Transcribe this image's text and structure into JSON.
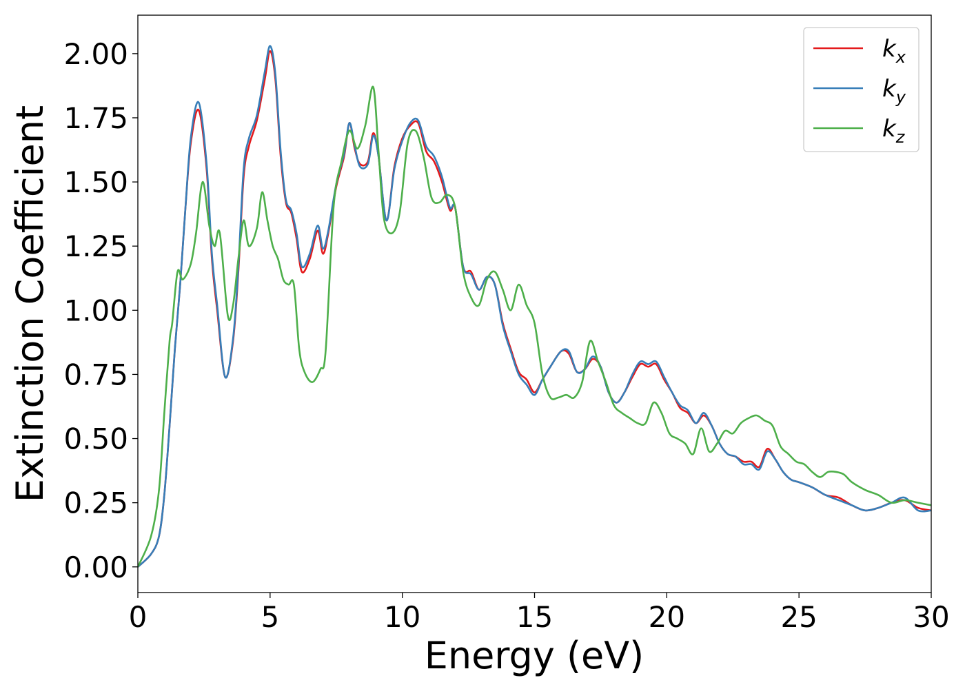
{
  "chart_data": {
    "type": "line",
    "title": "",
    "xlabel": "Energy (eV)",
    "ylabel": "Extinction Coefficient",
    "xlim": [
      0,
      30
    ],
    "ylim": [
      -0.1,
      2.15
    ],
    "xticks": [
      0,
      5,
      10,
      15,
      20,
      25,
      30
    ],
    "xtick_labels": [
      "0",
      "5",
      "10",
      "15",
      "20",
      "25",
      "30"
    ],
    "yticks": [
      0,
      0.25,
      0.5,
      0.75,
      1.0,
      1.25,
      1.5,
      1.75,
      2.0
    ],
    "ytick_labels": [
      "0.00",
      "0.25",
      "0.50",
      "0.75",
      "1.00",
      "1.25",
      "1.50",
      "1.75",
      "2.00"
    ],
    "grid": false,
    "legend_position": "top-right",
    "series": [
      {
        "name": "k_x",
        "label_main": "k",
        "label_sub": "x",
        "color": "#e41a1c",
        "x": [
          0,
          0.5,
          0.8,
          1.0,
          1.2,
          1.4,
          1.6,
          1.8,
          2.0,
          2.3,
          2.6,
          2.8,
          3.0,
          3.3,
          3.6,
          3.8,
          4.0,
          4.2,
          4.5,
          4.8,
          5.0,
          5.2,
          5.4,
          5.6,
          5.8,
          6.0,
          6.2,
          6.5,
          6.8,
          7.0,
          7.2,
          7.5,
          7.8,
          8.0,
          8.2,
          8.4,
          8.7,
          8.9,
          9.1,
          9.4,
          9.7,
          10.0,
          10.3,
          10.6,
          10.9,
          11.2,
          11.5,
          11.8,
          12.0,
          12.3,
          12.6,
          12.9,
          13.2,
          13.5,
          13.8,
          14.1,
          14.4,
          14.7,
          15.0,
          15.3,
          15.6,
          16.0,
          16.3,
          16.6,
          16.9,
          17.2,
          17.5,
          17.8,
          18.1,
          18.4,
          18.7,
          19.0,
          19.3,
          19.6,
          19.9,
          20.2,
          20.5,
          20.8,
          21.1,
          21.4,
          21.7,
          22.0,
          22.3,
          22.6,
          22.9,
          23.2,
          23.5,
          23.8,
          24.1,
          24.4,
          24.7,
          25.0,
          25.5,
          26.0,
          26.5,
          27.0,
          27.5,
          28.0,
          28.5,
          29.0,
          29.5,
          30.0
        ],
        "y": [
          0.0,
          0.05,
          0.12,
          0.28,
          0.55,
          0.85,
          1.1,
          1.4,
          1.65,
          1.78,
          1.55,
          1.2,
          1.0,
          0.74,
          0.88,
          1.15,
          1.52,
          1.64,
          1.74,
          1.9,
          2.01,
          1.9,
          1.6,
          1.42,
          1.38,
          1.28,
          1.15,
          1.2,
          1.31,
          1.22,
          1.3,
          1.48,
          1.6,
          1.73,
          1.63,
          1.57,
          1.58,
          1.69,
          1.6,
          1.35,
          1.56,
          1.67,
          1.72,
          1.73,
          1.62,
          1.58,
          1.5,
          1.39,
          1.4,
          1.17,
          1.15,
          1.08,
          1.13,
          1.1,
          0.95,
          0.85,
          0.76,
          0.73,
          0.68,
          0.73,
          0.78,
          0.84,
          0.83,
          0.76,
          0.77,
          0.81,
          0.78,
          0.68,
          0.64,
          0.68,
          0.74,
          0.79,
          0.78,
          0.79,
          0.73,
          0.68,
          0.62,
          0.6,
          0.56,
          0.59,
          0.55,
          0.48,
          0.44,
          0.43,
          0.41,
          0.41,
          0.39,
          0.46,
          0.42,
          0.37,
          0.34,
          0.33,
          0.31,
          0.28,
          0.27,
          0.24,
          0.22,
          0.23,
          0.25,
          0.26,
          0.23,
          0.22
        ]
      },
      {
        "name": "k_y",
        "label_main": "k",
        "label_sub": "y",
        "color": "#377eb8",
        "x": [
          0,
          0.5,
          0.8,
          1.0,
          1.2,
          1.4,
          1.6,
          1.8,
          2.0,
          2.3,
          2.6,
          2.8,
          3.0,
          3.3,
          3.6,
          3.8,
          4.0,
          4.2,
          4.5,
          4.8,
          5.0,
          5.2,
          5.4,
          5.6,
          5.8,
          6.0,
          6.2,
          6.5,
          6.8,
          7.0,
          7.2,
          7.5,
          7.8,
          8.0,
          8.2,
          8.4,
          8.7,
          8.9,
          9.1,
          9.4,
          9.7,
          10.0,
          10.3,
          10.6,
          10.9,
          11.2,
          11.5,
          11.8,
          12.0,
          12.3,
          12.6,
          12.9,
          13.2,
          13.5,
          13.8,
          14.1,
          14.4,
          14.7,
          15.0,
          15.3,
          15.6,
          16.0,
          16.3,
          16.6,
          16.9,
          17.2,
          17.5,
          17.8,
          18.1,
          18.4,
          18.7,
          19.0,
          19.3,
          19.6,
          19.9,
          20.2,
          20.5,
          20.8,
          21.1,
          21.4,
          21.7,
          22.0,
          22.3,
          22.6,
          22.9,
          23.2,
          23.5,
          23.8,
          24.1,
          24.4,
          24.7,
          25.0,
          25.5,
          26.0,
          26.5,
          27.0,
          27.5,
          28.0,
          28.5,
          29.0,
          29.5,
          30.0
        ],
        "y": [
          0.0,
          0.05,
          0.12,
          0.28,
          0.55,
          0.85,
          1.1,
          1.4,
          1.67,
          1.81,
          1.57,
          1.22,
          1.02,
          0.74,
          0.89,
          1.17,
          1.55,
          1.67,
          1.76,
          1.93,
          2.03,
          1.92,
          1.62,
          1.43,
          1.39,
          1.3,
          1.17,
          1.22,
          1.33,
          1.24,
          1.31,
          1.49,
          1.61,
          1.73,
          1.64,
          1.56,
          1.57,
          1.68,
          1.6,
          1.35,
          1.55,
          1.66,
          1.73,
          1.74,
          1.64,
          1.6,
          1.52,
          1.4,
          1.4,
          1.17,
          1.14,
          1.08,
          1.13,
          1.1,
          0.94,
          0.84,
          0.75,
          0.71,
          0.67,
          0.73,
          0.78,
          0.84,
          0.84,
          0.76,
          0.77,
          0.82,
          0.78,
          0.68,
          0.64,
          0.68,
          0.75,
          0.8,
          0.79,
          0.8,
          0.74,
          0.68,
          0.63,
          0.61,
          0.56,
          0.6,
          0.55,
          0.48,
          0.44,
          0.43,
          0.4,
          0.4,
          0.38,
          0.45,
          0.42,
          0.37,
          0.34,
          0.33,
          0.31,
          0.28,
          0.26,
          0.24,
          0.22,
          0.23,
          0.25,
          0.27,
          0.22,
          0.22
        ]
      },
      {
        "name": "k_z",
        "label_main": "k",
        "label_sub": "z",
        "color": "#4daf4a",
        "x": [
          0,
          0.5,
          0.8,
          1.0,
          1.2,
          1.3,
          1.5,
          1.7,
          2.0,
          2.2,
          2.45,
          2.7,
          2.9,
          3.1,
          3.4,
          3.6,
          3.8,
          4.0,
          4.2,
          4.5,
          4.7,
          4.9,
          5.1,
          5.3,
          5.5,
          5.7,
          5.9,
          6.1,
          6.3,
          6.6,
          6.9,
          7.1,
          7.4,
          7.7,
          8.0,
          8.3,
          8.6,
          8.9,
          9.1,
          9.3,
          9.6,
          9.9,
          10.2,
          10.5,
          10.8,
          11.1,
          11.4,
          11.7,
          12.0,
          12.3,
          12.6,
          12.9,
          13.2,
          13.5,
          13.8,
          14.1,
          14.4,
          14.7,
          15.0,
          15.3,
          15.6,
          15.9,
          16.2,
          16.5,
          16.8,
          17.1,
          17.4,
          17.7,
          18.0,
          18.3,
          18.6,
          18.9,
          19.2,
          19.5,
          19.8,
          20.1,
          20.4,
          20.7,
          21.0,
          21.3,
          21.6,
          21.9,
          22.2,
          22.5,
          22.8,
          23.1,
          23.4,
          23.7,
          24.0,
          24.3,
          24.6,
          24.9,
          25.2,
          25.5,
          25.8,
          26.1,
          26.4,
          26.7,
          27.0,
          27.5,
          28.0,
          28.5,
          29.0,
          29.5,
          30.0
        ],
        "y": [
          0.0,
          0.12,
          0.3,
          0.6,
          0.88,
          0.95,
          1.15,
          1.12,
          1.18,
          1.3,
          1.5,
          1.33,
          1.25,
          1.3,
          0.98,
          1.02,
          1.2,
          1.35,
          1.25,
          1.32,
          1.46,
          1.35,
          1.25,
          1.2,
          1.12,
          1.1,
          1.1,
          0.85,
          0.76,
          0.72,
          0.77,
          0.84,
          1.4,
          1.58,
          1.7,
          1.63,
          1.72,
          1.87,
          1.62,
          1.36,
          1.3,
          1.38,
          1.65,
          1.7,
          1.6,
          1.44,
          1.42,
          1.45,
          1.4,
          1.15,
          1.05,
          1.02,
          1.12,
          1.15,
          1.08,
          1.0,
          1.1,
          1.02,
          0.95,
          0.75,
          0.66,
          0.66,
          0.67,
          0.66,
          0.72,
          0.88,
          0.8,
          0.72,
          0.63,
          0.6,
          0.58,
          0.56,
          0.56,
          0.64,
          0.6,
          0.52,
          0.5,
          0.48,
          0.44,
          0.54,
          0.45,
          0.48,
          0.53,
          0.52,
          0.56,
          0.58,
          0.59,
          0.57,
          0.55,
          0.47,
          0.44,
          0.41,
          0.4,
          0.37,
          0.35,
          0.37,
          0.37,
          0.36,
          0.33,
          0.3,
          0.28,
          0.25,
          0.26,
          0.25,
          0.24
        ]
      }
    ]
  }
}
